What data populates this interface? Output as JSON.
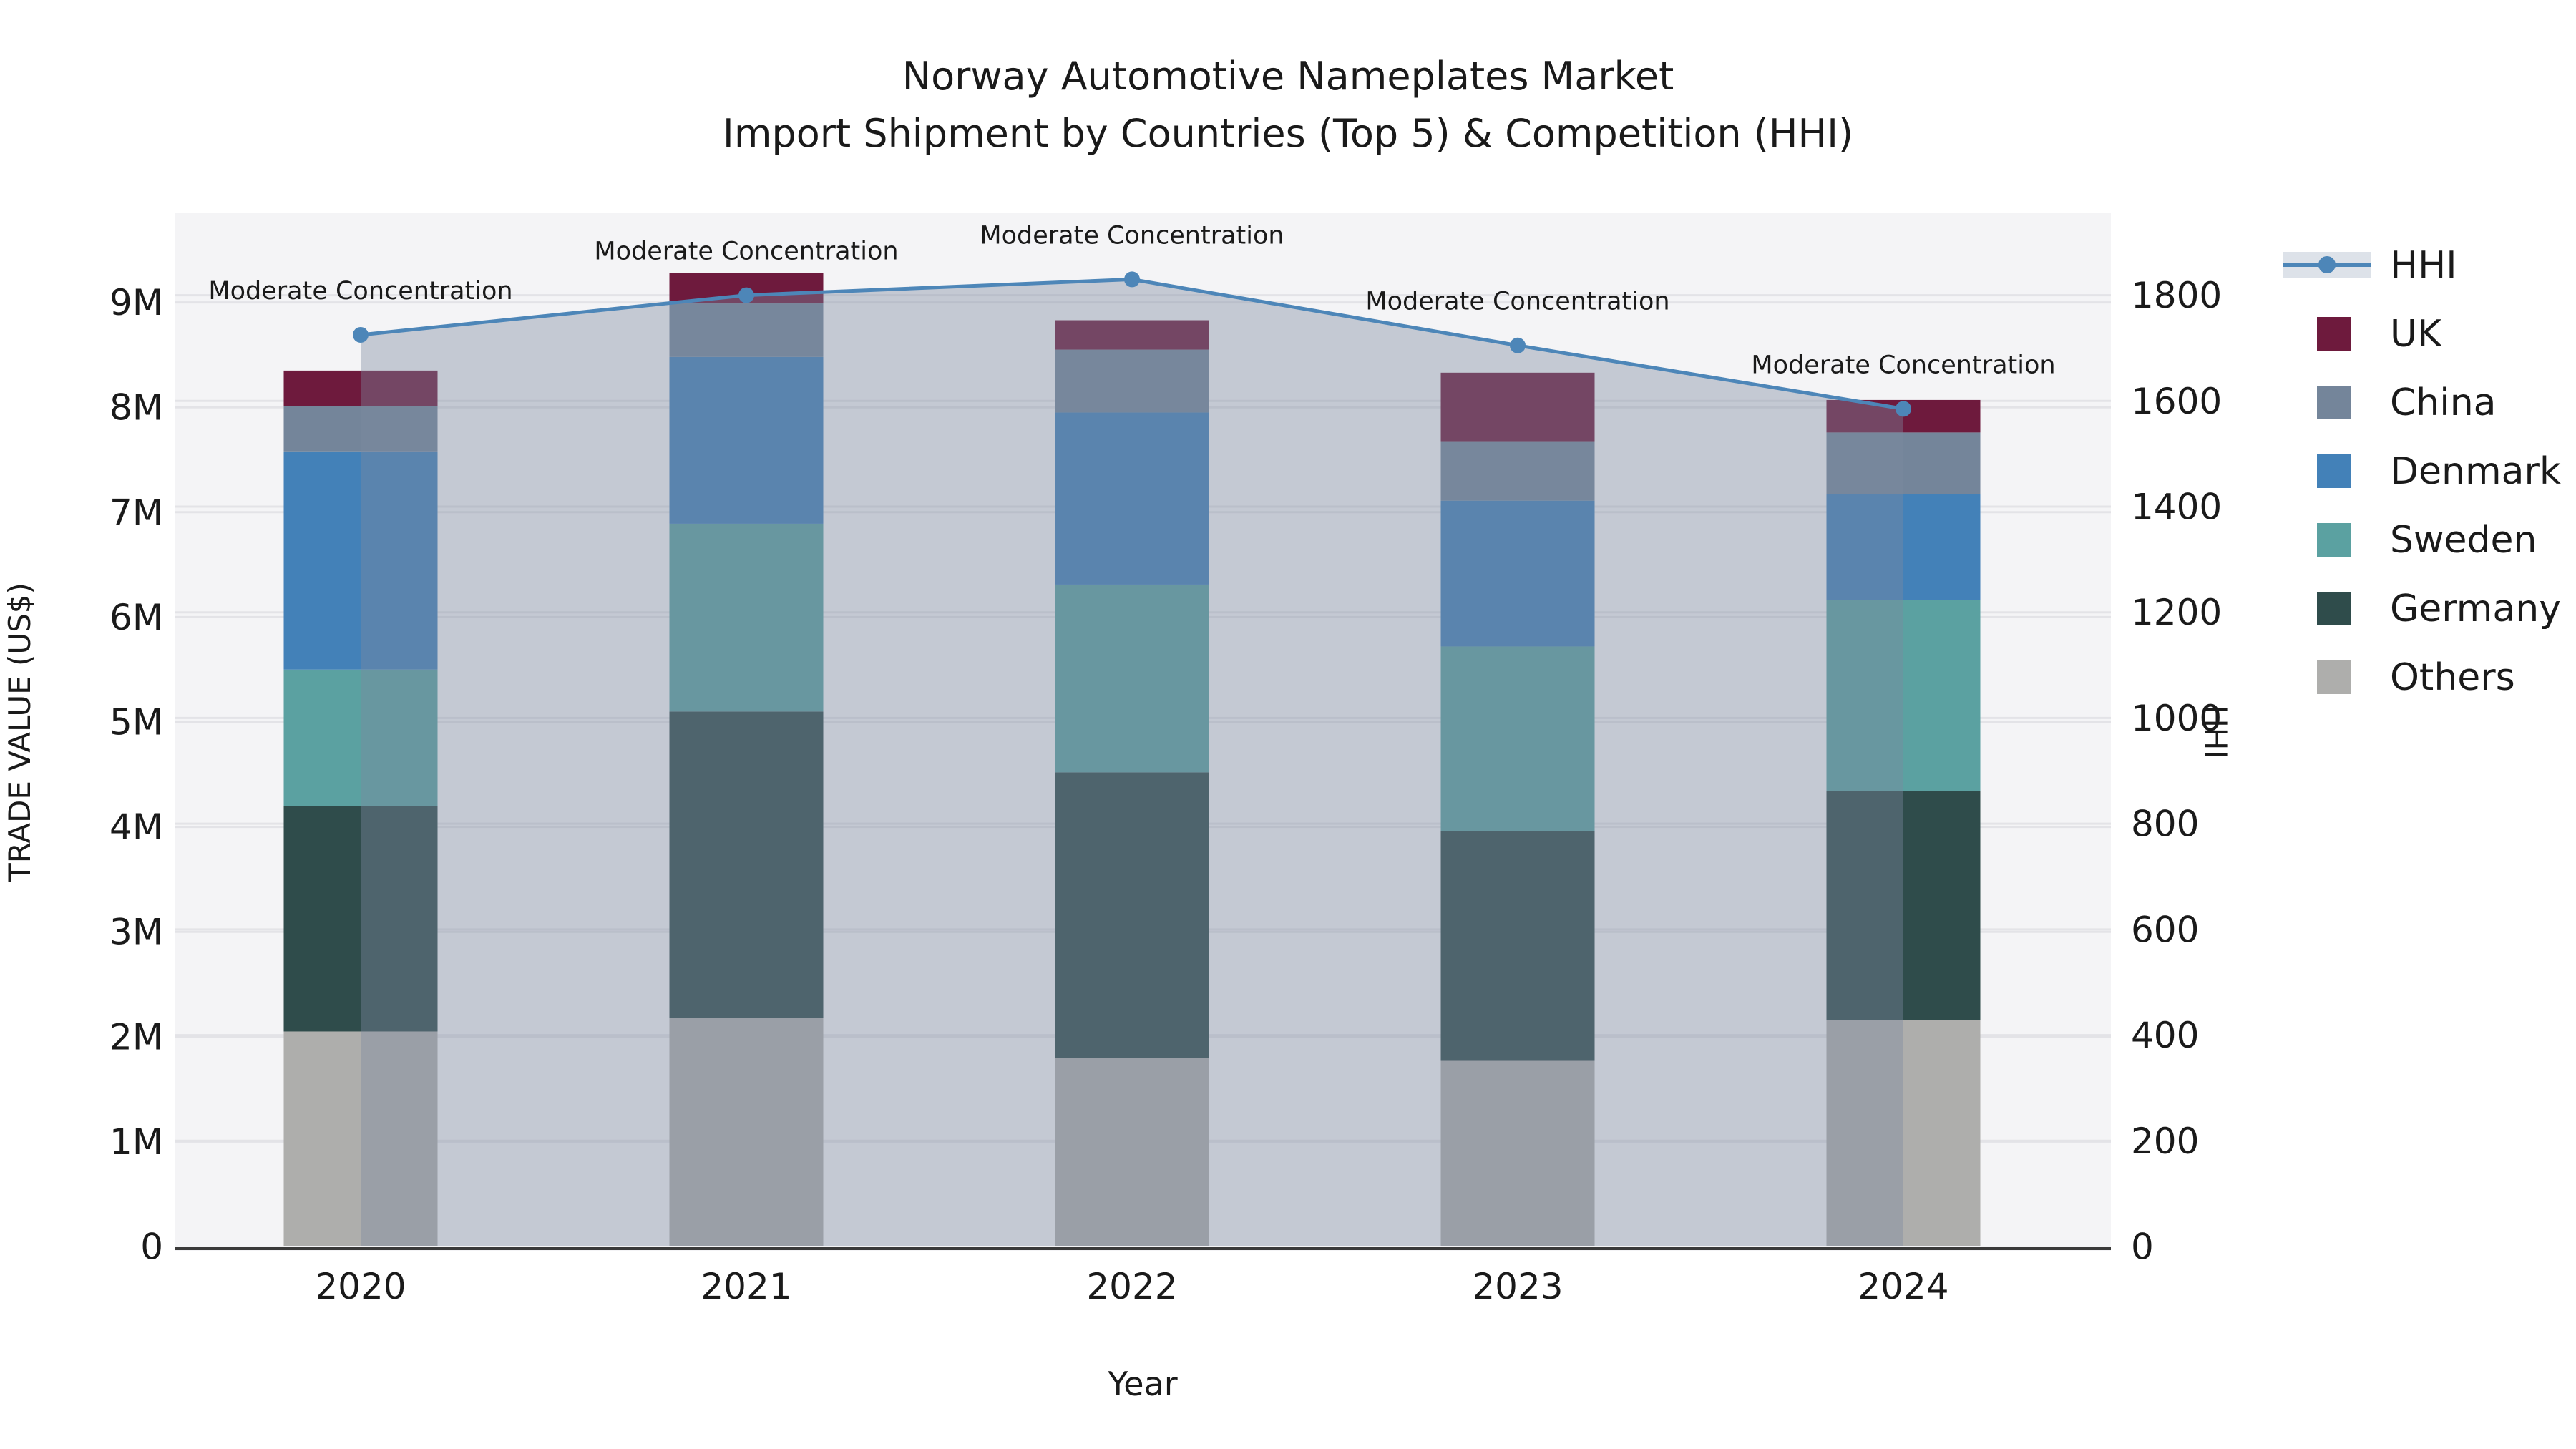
{
  "title": {
    "line1": "Norway Automotive Nameplates Market",
    "line2": "Import Shipment by Countries (Top 5) & Competition (HHI)"
  },
  "axes": {
    "left_label": "TRADE VALUE (US$)",
    "right_label": "HHI",
    "bottom_label": "Year",
    "left_ticks": [
      "0",
      "1M",
      "2M",
      "3M",
      "4M",
      "5M",
      "6M",
      "7M",
      "8M",
      "9M"
    ],
    "right_ticks": [
      "0",
      "200",
      "400",
      "600",
      "800",
      "1000",
      "1200",
      "1400",
      "1600",
      "1800"
    ]
  },
  "legend": [
    {
      "label": "HHI",
      "type": "line",
      "color": "#4D86B8",
      "band": "#dde2e9"
    },
    {
      "label": "UK",
      "type": "patch",
      "color": "#6E1A3D"
    },
    {
      "label": "China",
      "type": "patch",
      "color": "#74859A"
    },
    {
      "label": "Denmark",
      "type": "patch",
      "color": "#4381B8"
    },
    {
      "label": "Sweden",
      "type": "patch",
      "color": "#5BA1A1"
    },
    {
      "label": "Germany",
      "type": "patch",
      "color": "#2F4C4B"
    },
    {
      "label": "Others",
      "type": "patch",
      "color": "#AEAEAC"
    }
  ],
  "chart_data": {
    "type": [
      "stacked-bar",
      "line"
    ],
    "categories": [
      "2020",
      "2021",
      "2022",
      "2023",
      "2024"
    ],
    "value_unit": "millions US$",
    "bar_series": [
      {
        "name": "Others",
        "color": "#AEAEAC",
        "values": [
          2.05,
          2.18,
          1.8,
          1.77,
          2.16
        ]
      },
      {
        "name": "Germany",
        "color": "#2F4C4B",
        "values": [
          2.15,
          2.92,
          2.72,
          2.19,
          2.18
        ]
      },
      {
        "name": "Sweden",
        "color": "#5BA1A1",
        "values": [
          1.3,
          1.79,
          1.79,
          1.76,
          1.82
        ]
      },
      {
        "name": "Denmark",
        "color": "#4381B8",
        "values": [
          2.08,
          1.59,
          1.64,
          1.39,
          1.01
        ]
      },
      {
        "name": "China",
        "color": "#74859A",
        "values": [
          0.43,
          0.51,
          0.6,
          0.56,
          0.59
        ]
      },
      {
        "name": "UK",
        "color": "#6E1A3D",
        "values": [
          0.34,
          0.29,
          0.28,
          0.66,
          0.31
        ]
      }
    ],
    "bar_totals": [
      8.35,
      9.28,
      8.83,
      8.33,
      8.07
    ],
    "line_series": {
      "name": "HHI",
      "color": "#4D86B8",
      "values": [
        1725,
        1800,
        1830,
        1705,
        1585
      ],
      "area_fill": "rgba(125,138,160,0.40)",
      "point_annotation": "Moderate Concentration"
    },
    "title": "Norway Automotive Nameplates Market — Import Shipment by Countries (Top 5) & Competition (HHI)",
    "xlabel": "Year",
    "ylabel": "TRADE VALUE (US$)",
    "y2label": "HHI",
    "ylim": [
      0,
      9.85
    ],
    "y2lim": [
      0,
      1955
    ],
    "grid": true,
    "legend_position": "right"
  },
  "style": {
    "plot_bg": "#F4F4F6",
    "grid_color": "#E3E3E7",
    "spine_color": "#3a3a3a",
    "text_color": "#1a1a1a"
  }
}
